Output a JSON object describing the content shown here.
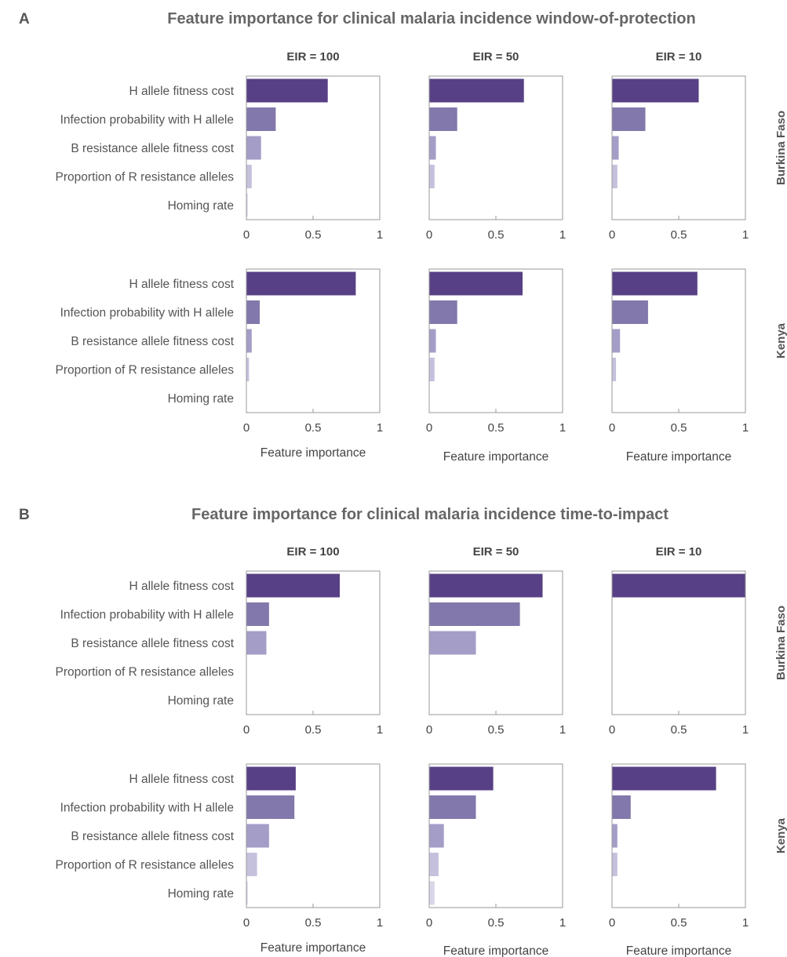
{
  "colors": {
    "bar_shades": [
      "#574085",
      "#8378ab",
      "#a49dc7",
      "#c5c1dd",
      "#d9d6e8"
    ],
    "frame": "#9a9a9a"
  },
  "chart_data": [
    {
      "type": "bar",
      "orientation": "horizontal",
      "panel_letter": "A",
      "title": "Feature importance for clinical malaria incidence window-of-protection",
      "columns": [
        "EIR = 100",
        "EIR = 50",
        "EIR = 10"
      ],
      "rows": [
        "Burkina Faso",
        "Kenya"
      ],
      "categories": [
        "H allele fitness cost",
        "Infection probability with H allele",
        "B resistance allele fitness cost",
        "Proportion of R resistance alleles",
        "Homing rate"
      ],
      "xlabel": "Feature importance",
      "xlim": [
        0,
        1
      ],
      "xticks": [
        "0",
        "0.5",
        "1"
      ],
      "grid": false,
      "subplots": [
        {
          "row": "Burkina Faso",
          "column": "EIR = 100",
          "values": [
            0.61,
            0.22,
            0.11,
            0.04,
            0.01
          ]
        },
        {
          "row": "Burkina Faso",
          "column": "EIR = 50",
          "values": [
            0.71,
            0.21,
            0.05,
            0.04,
            0.0
          ]
        },
        {
          "row": "Burkina Faso",
          "column": "EIR = 10",
          "values": [
            0.65,
            0.25,
            0.05,
            0.04,
            0.0
          ]
        },
        {
          "row": "Kenya",
          "column": "EIR = 100",
          "values": [
            0.82,
            0.1,
            0.04,
            0.02,
            0.0
          ]
        },
        {
          "row": "Kenya",
          "column": "EIR = 50",
          "values": [
            0.7,
            0.21,
            0.05,
            0.04,
            0.0
          ]
        },
        {
          "row": "Kenya",
          "column": "EIR = 10",
          "values": [
            0.64,
            0.27,
            0.06,
            0.03,
            0.0
          ]
        }
      ]
    },
    {
      "type": "bar",
      "orientation": "horizontal",
      "panel_letter": "B",
      "title": "Feature importance for clinical malaria incidence time-to-impact",
      "columns": [
        "EIR = 100",
        "EIR = 50",
        "EIR = 10"
      ],
      "rows": [
        "Burkina Faso",
        "Kenya"
      ],
      "categories": [
        "H allele fitness cost",
        "Infection probability with H allele",
        "B resistance allele fitness cost",
        "Proportion of R resistance alleles",
        "Homing rate"
      ],
      "xlabel": "Feature importance",
      "xlim": [
        0,
        1
      ],
      "xticks": [
        "0",
        "0.5",
        "1"
      ],
      "grid": false,
      "subplots": [
        {
          "row": "Burkina Faso",
          "column": "EIR = 100",
          "values": [
            0.7,
            0.17,
            0.15,
            0.0,
            0.0
          ]
        },
        {
          "row": "Burkina Faso",
          "column": "EIR = 50",
          "values": [
            0.85,
            0.68,
            0.35,
            0.0,
            0.0
          ]
        },
        {
          "row": "Burkina Faso",
          "column": "EIR = 10",
          "values": [
            1.0,
            0.0,
            0.0,
            0.0,
            0.0
          ]
        },
        {
          "row": "Kenya",
          "column": "EIR = 100",
          "values": [
            0.37,
            0.36,
            0.17,
            0.08,
            0.01
          ]
        },
        {
          "row": "Kenya",
          "column": "EIR = 50",
          "values": [
            0.48,
            0.35,
            0.11,
            0.07,
            0.04
          ]
        },
        {
          "row": "Kenya",
          "column": "EIR = 10",
          "values": [
            0.78,
            0.14,
            0.04,
            0.04,
            0.0
          ]
        }
      ]
    }
  ]
}
